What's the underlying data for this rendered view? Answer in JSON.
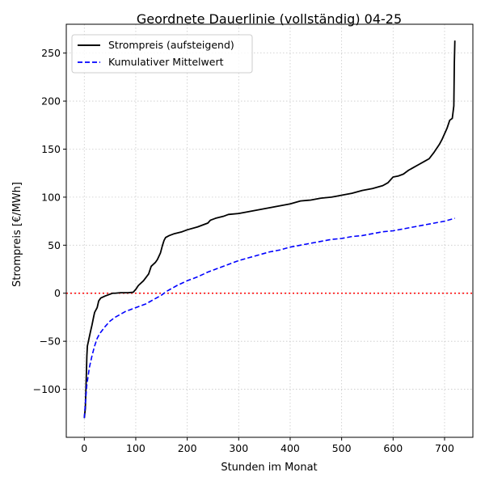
{
  "chart_data": {
    "type": "line",
    "title": "Geordnete Dauerlinie (vollständig) 04-25",
    "xlabel": "Stunden im Monat",
    "ylabel": "Strompreis [€/MWh]",
    "xlim": [
      -35,
      755
    ],
    "ylim": [
      -150,
      280
    ],
    "xticks": [
      0,
      100,
      200,
      300,
      400,
      500,
      600,
      700
    ],
    "yticks": [
      -100,
      -50,
      0,
      50,
      100,
      150,
      200,
      250
    ],
    "xtick_labels": [
      "0",
      "100",
      "200",
      "300",
      "400",
      "500",
      "600",
      "700"
    ],
    "ytick_labels": [
      "−100",
      "−50",
      "0",
      "50",
      "100",
      "150",
      "200",
      "250"
    ],
    "grid": true,
    "legend_position": "upper-left",
    "reference_line": {
      "y": 0,
      "color": "#ff0000",
      "style": "dotted"
    },
    "series": [
      {
        "name": "Strompreis (aufsteigend)",
        "color": "#000000",
        "style": "solid",
        "points": [
          [
            0,
            -130
          ],
          [
            2,
            -120
          ],
          [
            4,
            -85
          ],
          [
            5,
            -65
          ],
          [
            6,
            -55
          ],
          [
            8,
            -50
          ],
          [
            10,
            -45
          ],
          [
            12,
            -40
          ],
          [
            15,
            -33
          ],
          [
            18,
            -25
          ],
          [
            20,
            -20
          ],
          [
            25,
            -15
          ],
          [
            28,
            -8
          ],
          [
            32,
            -5
          ],
          [
            40,
            -3
          ],
          [
            50,
            -1
          ],
          [
            55,
            0
          ],
          [
            60,
            0
          ],
          [
            70,
            0.5
          ],
          [
            85,
            0.5
          ],
          [
            95,
            1
          ],
          [
            100,
            4
          ],
          [
            105,
            8
          ],
          [
            115,
            13
          ],
          [
            125,
            20
          ],
          [
            130,
            28
          ],
          [
            138,
            32
          ],
          [
            142,
            35
          ],
          [
            148,
            42
          ],
          [
            152,
            50
          ],
          [
            155,
            55
          ],
          [
            158,
            58
          ],
          [
            165,
            60
          ],
          [
            175,
            62
          ],
          [
            190,
            64
          ],
          [
            200,
            66
          ],
          [
            220,
            69
          ],
          [
            240,
            73
          ],
          [
            245,
            76
          ],
          [
            255,
            78
          ],
          [
            270,
            80
          ],
          [
            280,
            82
          ],
          [
            300,
            83
          ],
          [
            320,
            85
          ],
          [
            340,
            87
          ],
          [
            360,
            89
          ],
          [
            380,
            91
          ],
          [
            400,
            93
          ],
          [
            420,
            96
          ],
          [
            440,
            97
          ],
          [
            460,
            99
          ],
          [
            480,
            100
          ],
          [
            490,
            101
          ],
          [
            500,
            102
          ],
          [
            520,
            104
          ],
          [
            540,
            107
          ],
          [
            560,
            109
          ],
          [
            580,
            112
          ],
          [
            590,
            115
          ],
          [
            595,
            118
          ],
          [
            600,
            121
          ],
          [
            610,
            122
          ],
          [
            620,
            124
          ],
          [
            630,
            128
          ],
          [
            640,
            131
          ],
          [
            650,
            134
          ],
          [
            660,
            137
          ],
          [
            670,
            140
          ],
          [
            680,
            147
          ],
          [
            690,
            155
          ],
          [
            695,
            160
          ],
          [
            700,
            166
          ],
          [
            705,
            172
          ],
          [
            710,
            180
          ],
          [
            715,
            182
          ],
          [
            718,
            195
          ],
          [
            719,
            240
          ],
          [
            720,
            263
          ]
        ]
      },
      {
        "name": "Kumulativer Mittelwert",
        "color": "#0000ff",
        "style": "dashed",
        "points": [
          [
            0,
            -130
          ],
          [
            2,
            -115
          ],
          [
            5,
            -95
          ],
          [
            10,
            -77
          ],
          [
            15,
            -65
          ],
          [
            20,
            -55
          ],
          [
            25,
            -47
          ],
          [
            30,
            -42
          ],
          [
            40,
            -35
          ],
          [
            50,
            -29
          ],
          [
            60,
            -25
          ],
          [
            70,
            -22
          ],
          [
            80,
            -19
          ],
          [
            90,
            -17
          ],
          [
            100,
            -15
          ],
          [
            110,
            -13
          ],
          [
            120,
            -11
          ],
          [
            130,
            -8
          ],
          [
            140,
            -5
          ],
          [
            150,
            -2
          ],
          [
            160,
            2
          ],
          [
            170,
            5
          ],
          [
            180,
            8
          ],
          [
            200,
            13
          ],
          [
            220,
            17
          ],
          [
            240,
            22
          ],
          [
            260,
            26
          ],
          [
            280,
            30
          ],
          [
            300,
            34
          ],
          [
            320,
            37
          ],
          [
            340,
            40
          ],
          [
            360,
            43
          ],
          [
            380,
            45
          ],
          [
            400,
            48
          ],
          [
            420,
            50
          ],
          [
            440,
            52
          ],
          [
            460,
            54
          ],
          [
            480,
            56
          ],
          [
            500,
            57
          ],
          [
            520,
            59
          ],
          [
            540,
            60
          ],
          [
            560,
            62
          ],
          [
            580,
            64
          ],
          [
            600,
            65
          ],
          [
            620,
            67
          ],
          [
            640,
            69
          ],
          [
            660,
            71
          ],
          [
            680,
            73
          ],
          [
            700,
            75
          ],
          [
            720,
            78
          ]
        ]
      }
    ]
  }
}
